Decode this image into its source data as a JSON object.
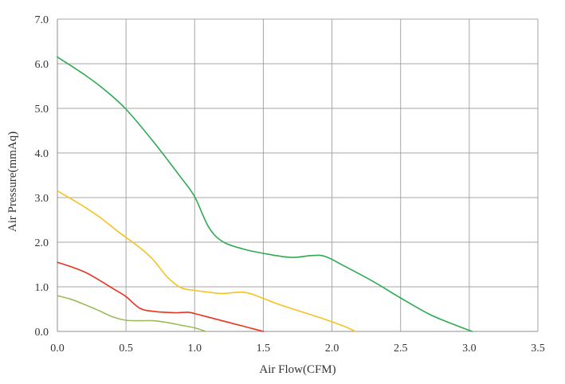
{
  "chart_data": {
    "type": "line",
    "title": "",
    "xlabel": "Air Flow(CFM)",
    "ylabel": "Air Pressure(mmAq)",
    "xlim": [
      0,
      3.5
    ],
    "ylim": [
      0,
      7
    ],
    "x_ticks": [
      "0.0",
      "0.5",
      "1.0",
      "1.5",
      "2.0",
      "2.5",
      "3.0",
      "3.5"
    ],
    "y_ticks": [
      "0.0",
      "1.0",
      "2.0",
      "3.0",
      "4.0",
      "5.0",
      "6.0",
      "7.0"
    ],
    "grid": true,
    "series": [
      {
        "color": "#2eaa52",
        "points": [
          [
            0.0,
            6.15
          ],
          [
            0.2,
            5.75
          ],
          [
            0.35,
            5.4
          ],
          [
            0.5,
            4.98
          ],
          [
            0.7,
            4.25
          ],
          [
            0.9,
            3.45
          ],
          [
            1.0,
            3.02
          ],
          [
            1.1,
            2.35
          ],
          [
            1.2,
            2.02
          ],
          [
            1.35,
            1.85
          ],
          [
            1.5,
            1.75
          ],
          [
            1.7,
            1.66
          ],
          [
            1.85,
            1.7
          ],
          [
            1.95,
            1.68
          ],
          [
            2.1,
            1.45
          ],
          [
            2.3,
            1.12
          ],
          [
            2.5,
            0.75
          ],
          [
            2.7,
            0.4
          ],
          [
            2.85,
            0.2
          ],
          [
            3.02,
            0.0
          ]
        ]
      },
      {
        "color": "#f5c320",
        "points": [
          [
            0.0,
            3.15
          ],
          [
            0.15,
            2.88
          ],
          [
            0.3,
            2.58
          ],
          [
            0.45,
            2.22
          ],
          [
            0.6,
            1.88
          ],
          [
            0.7,
            1.6
          ],
          [
            0.8,
            1.22
          ],
          [
            0.9,
            0.98
          ],
          [
            1.0,
            0.92
          ],
          [
            1.1,
            0.88
          ],
          [
            1.2,
            0.85
          ],
          [
            1.35,
            0.88
          ],
          [
            1.45,
            0.8
          ],
          [
            1.6,
            0.62
          ],
          [
            1.8,
            0.42
          ],
          [
            1.95,
            0.27
          ],
          [
            2.1,
            0.1
          ],
          [
            2.17,
            0.0
          ]
        ]
      },
      {
        "color": "#e8331f",
        "points": [
          [
            0.0,
            1.55
          ],
          [
            0.1,
            1.45
          ],
          [
            0.2,
            1.33
          ],
          [
            0.3,
            1.16
          ],
          [
            0.4,
            0.97
          ],
          [
            0.5,
            0.78
          ],
          [
            0.6,
            0.52
          ],
          [
            0.7,
            0.45
          ],
          [
            0.85,
            0.42
          ],
          [
            0.95,
            0.43
          ],
          [
            1.0,
            0.4
          ],
          [
            1.1,
            0.32
          ],
          [
            1.2,
            0.24
          ],
          [
            1.3,
            0.16
          ],
          [
            1.4,
            0.08
          ],
          [
            1.5,
            0.0
          ]
        ]
      },
      {
        "color": "#9cbb5a",
        "points": [
          [
            0.0,
            0.8
          ],
          [
            0.1,
            0.72
          ],
          [
            0.2,
            0.6
          ],
          [
            0.3,
            0.47
          ],
          [
            0.4,
            0.33
          ],
          [
            0.5,
            0.25
          ],
          [
            0.6,
            0.24
          ],
          [
            0.7,
            0.24
          ],
          [
            0.8,
            0.2
          ],
          [
            0.9,
            0.14
          ],
          [
            1.0,
            0.08
          ],
          [
            1.08,
            0.0
          ]
        ]
      }
    ]
  }
}
